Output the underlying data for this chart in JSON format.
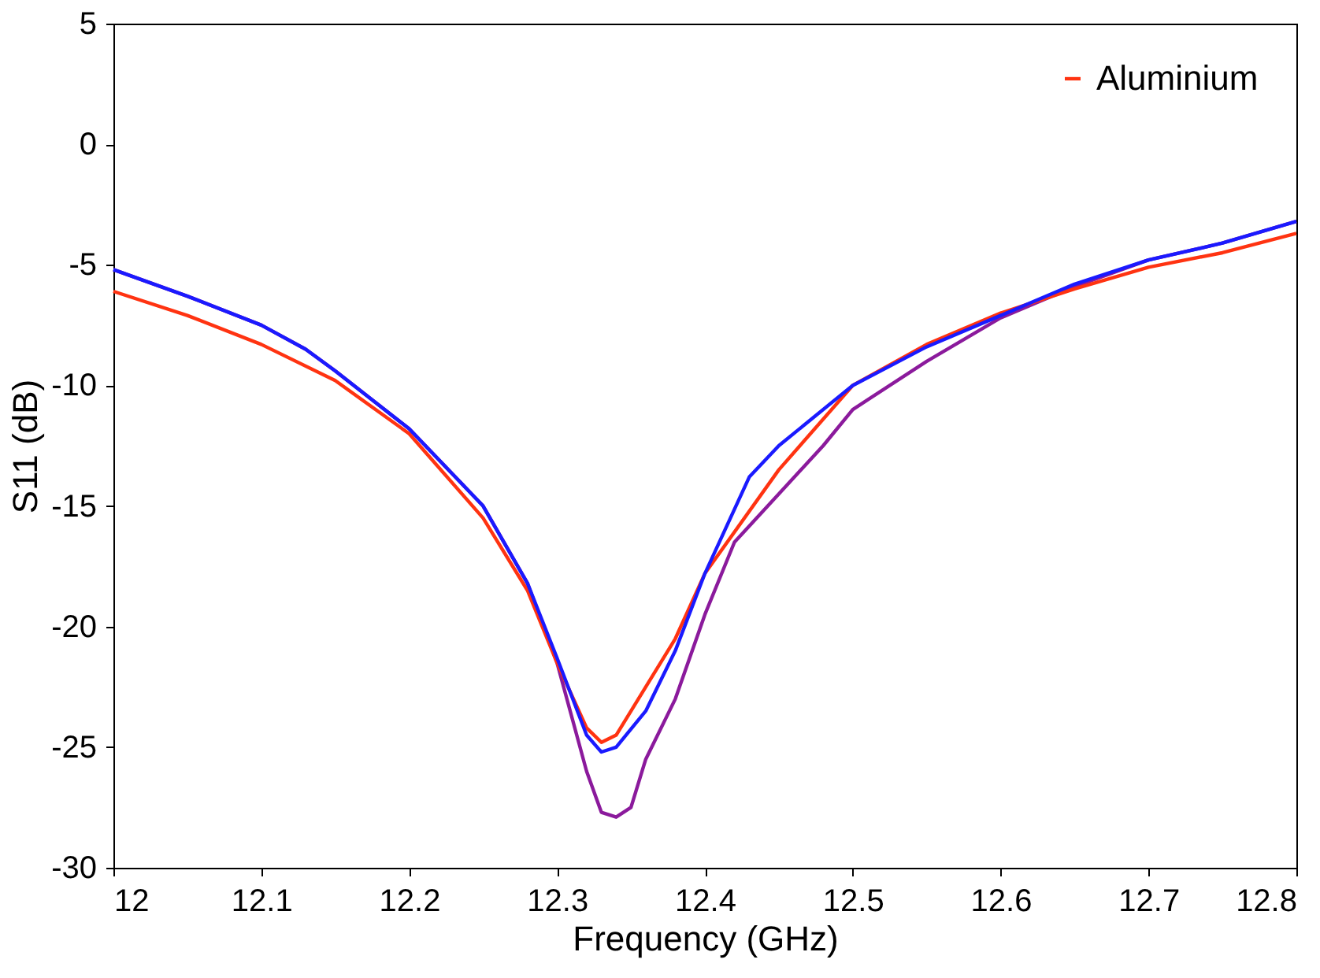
{
  "chart_data": {
    "type": "line",
    "xlabel": "Frequency (GHz)",
    "ylabel": "S11 (dB)",
    "xlim": [
      12,
      12.8
    ],
    "xticks": [
      12,
      12.1,
      12.2,
      12.3,
      12.4,
      12.5,
      12.6,
      12.7,
      12.8
    ],
    "ylim": [
      -30,
      5
    ],
    "yticks": [
      -30,
      -25,
      -20,
      -15,
      -10,
      -5,
      0,
      5
    ],
    "grid": false,
    "legend": "top right",
    "marker": "none",
    "line_style": "solid",
    "series": [
      {
        "color": "#8b1a9c",
        "x": [
          12.0,
          12.05,
          12.1,
          12.13,
          12.15,
          12.2,
          12.25,
          12.28,
          12.3,
          12.32,
          12.33,
          12.34,
          12.35,
          12.36,
          12.38,
          12.4,
          12.42,
          12.45,
          12.48,
          12.5,
          12.55,
          12.6,
          12.65,
          12.7,
          12.75,
          12.8
        ],
        "values": [
          -5.2,
          -6.3,
          -7.5,
          -8.5,
          -9.4,
          -11.8,
          -15.0,
          -18.2,
          -21.5,
          -26.0,
          -27.7,
          -27.9,
          -27.5,
          -25.5,
          -23.0,
          -19.5,
          -16.5,
          -14.5,
          -12.5,
          -11.0,
          -9.0,
          -7.2,
          -5.9,
          -4.8,
          -4.1,
          -3.2
        ]
      },
      {
        "name": "Aluminium",
        "color": "#ff3311",
        "x": [
          12.0,
          12.05,
          12.1,
          12.15,
          12.2,
          12.25,
          12.28,
          12.3,
          12.32,
          12.33,
          12.34,
          12.36,
          12.38,
          12.4,
          12.45,
          12.5,
          12.55,
          12.6,
          12.65,
          12.7,
          12.75,
          12.8
        ],
        "values": [
          -6.1,
          -7.1,
          -8.3,
          -9.8,
          -12.0,
          -15.5,
          -18.5,
          -21.5,
          -24.2,
          -24.8,
          -24.5,
          -22.5,
          -20.5,
          -17.8,
          -13.5,
          -10.0,
          -8.3,
          -7.0,
          -6.0,
          -5.1,
          -4.5,
          -3.7
        ]
      },
      {
        "color": "#1a1aff",
        "x": [
          12.0,
          12.05,
          12.1,
          12.13,
          12.15,
          12.2,
          12.25,
          12.28,
          12.3,
          12.32,
          12.33,
          12.34,
          12.36,
          12.38,
          12.4,
          12.43,
          12.45,
          12.5,
          12.55,
          12.6,
          12.65,
          12.7,
          12.75,
          12.8
        ],
        "values": [
          -5.2,
          -6.3,
          -7.5,
          -8.5,
          -9.4,
          -11.8,
          -15.0,
          -18.2,
          -21.3,
          -24.5,
          -25.2,
          -25.0,
          -23.5,
          -21.0,
          -17.8,
          -13.8,
          -12.5,
          -10.0,
          -8.4,
          -7.1,
          -5.8,
          -4.8,
          -4.1,
          -3.2
        ]
      }
    ]
  }
}
